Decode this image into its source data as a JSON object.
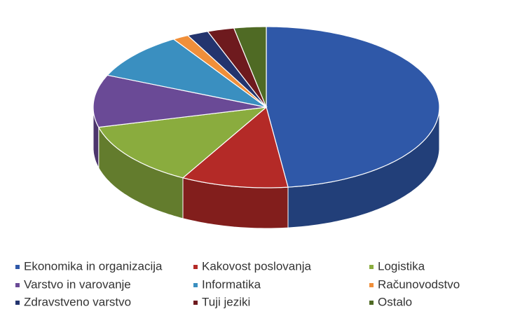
{
  "chart_data": {
    "type": "pie3d",
    "categories": [
      "Ekonomika in organizacija",
      "Kakovost poslovanja",
      "Logistika",
      "Varstvo in varovanje",
      "Informatika",
      "Računovodstvo",
      "Zdravstveno varstvo",
      "Tuji jeziki",
      "Ostalo"
    ],
    "values": [
      48,
      10,
      13,
      10.5,
      9.5,
      1.5,
      2,
      2.5,
      3
    ],
    "colors": [
      "#2f58a8",
      "#b42a27",
      "#8aac3e",
      "#6a4a96",
      "#3a8fc0",
      "#f08f3a",
      "#23346e",
      "#6e1a1e",
      "#4f6a24"
    ],
    "legend": "bottom"
  }
}
